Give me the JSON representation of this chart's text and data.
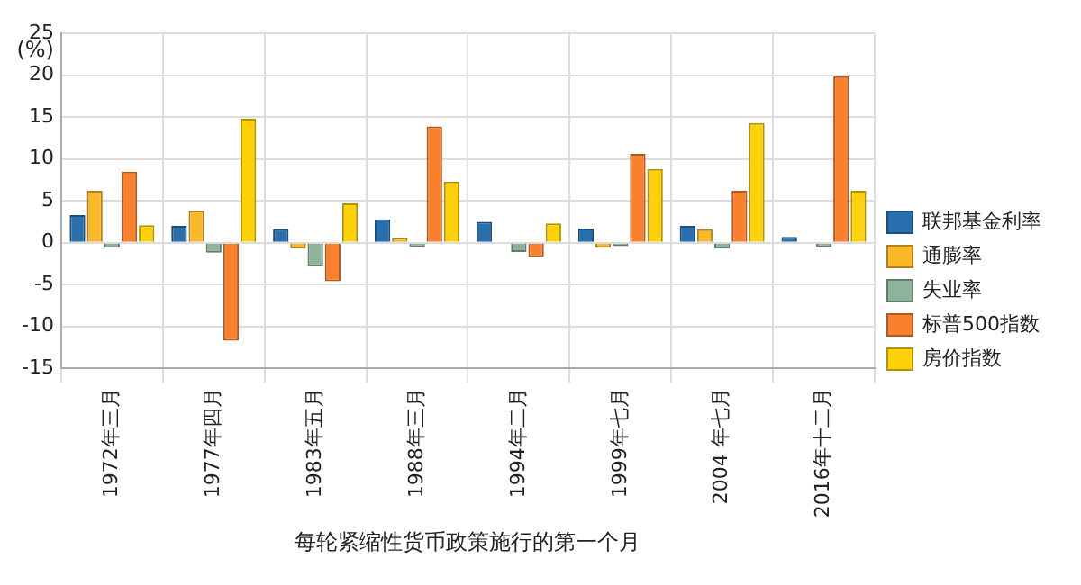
{
  "chart_data": {
    "type": "bar",
    "xlabel": "每轮紧缩性货币政策施行的第一个月",
    "ylabel": "(%)",
    "categories": [
      "1972年三月",
      "1977年四月",
      "1983年五月",
      "1988年三月",
      "1994年二月",
      "1999年七月",
      "2004 年七月",
      "2016年十二月"
    ],
    "series": [
      {
        "name": "联邦基金利率",
        "color": "#2a6fad",
        "values": [
          3.3,
          2.0,
          1.6,
          2.8,
          2.5,
          1.7,
          2.0,
          0.7
        ]
      },
      {
        "name": "通膨率",
        "color": "#fbb829",
        "values": [
          6.2,
          3.8,
          -0.7,
          0.6,
          null,
          -0.6,
          1.6,
          null
        ]
      },
      {
        "name": "失业率",
        "color": "#8db39a",
        "values": [
          -0.6,
          -1.2,
          -2.8,
          -0.5,
          -1.1,
          -0.4,
          -0.7,
          -0.5
        ]
      },
      {
        "name": "标普500指数",
        "color": "#f9812e",
        "values": [
          8.5,
          -11.7,
          -4.6,
          13.9,
          -1.7,
          10.6,
          6.2,
          19.9
        ]
      },
      {
        "name": "房价指数",
        "color": "#fdd20a",
        "values": [
          2.1,
          14.8,
          4.7,
          7.3,
          2.3,
          8.8,
          14.3,
          6.2
        ]
      }
    ],
    "ylim": [
      -15,
      25
    ],
    "yticks": [
      -15,
      -10,
      -5,
      0,
      5,
      10,
      15,
      20,
      25
    ],
    "grid": true,
    "legend": "right"
  }
}
